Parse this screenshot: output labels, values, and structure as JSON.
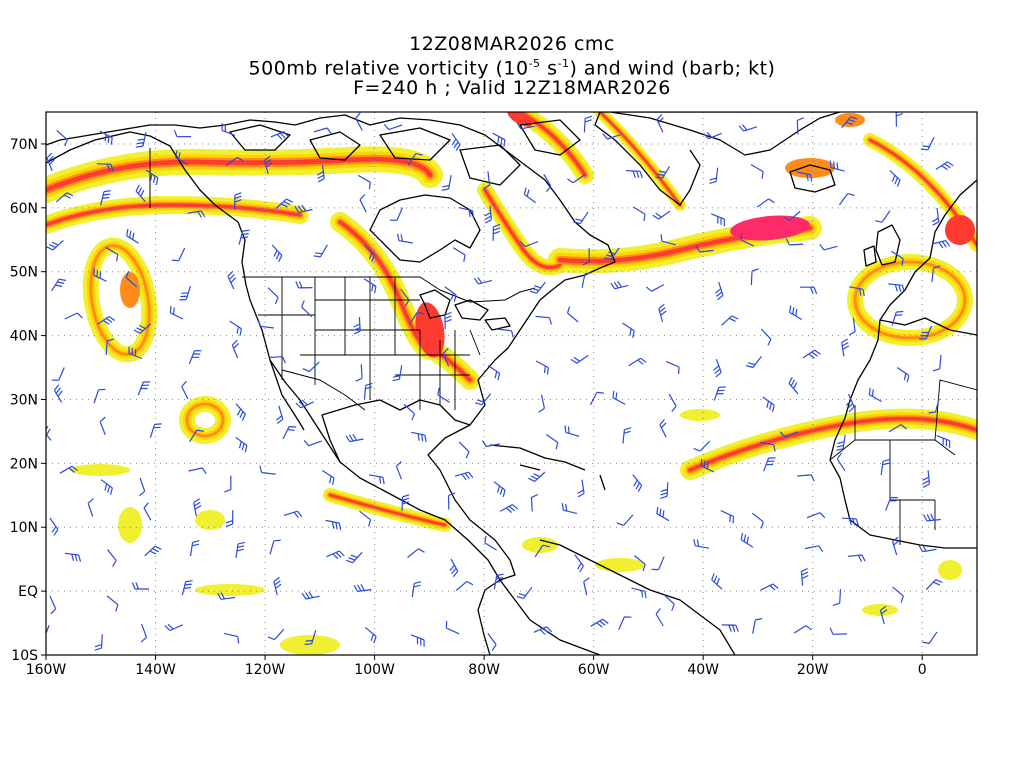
{
  "titles": {
    "line1": "12Z08MAR2026 cmc",
    "line2_prefix": "500mb relative vorticity (10",
    "line2_exp1": "-5",
    "line2_mid": " s",
    "line2_exp2": "-1",
    "line2_suffix": ") and wind (barb; kt)",
    "line3": "F=240 h ; Valid 12Z18MAR2026"
  },
  "map": {
    "lon_range": [
      -160,
      10
    ],
    "lat_range": [
      -10,
      75
    ],
    "lon_ticks": [
      {
        "value": -160,
        "label": "160W"
      },
      {
        "value": -140,
        "label": "140W"
      },
      {
        "value": -120,
        "label": "120W"
      },
      {
        "value": -100,
        "label": "100W"
      },
      {
        "value": -80,
        "label": "80W"
      },
      {
        "value": -60,
        "label": "60W"
      },
      {
        "value": -40,
        "label": "40W"
      },
      {
        "value": -20,
        "label": "20W"
      },
      {
        "value": 0,
        "label": "0"
      }
    ],
    "lat_ticks": [
      {
        "value": 70,
        "label": "70N"
      },
      {
        "value": 60,
        "label": "60N"
      },
      {
        "value": 50,
        "label": "50N"
      },
      {
        "value": 40,
        "label": "40N"
      },
      {
        "value": 30,
        "label": "30N"
      },
      {
        "value": 20,
        "label": "20N"
      },
      {
        "value": 10,
        "label": "10N"
      },
      {
        "value": 0,
        "label": "EQ"
      },
      {
        "value": -10,
        "label": "10S"
      }
    ],
    "colors": {
      "vort_light": "#f0f030",
      "vort_yellow": "#ffd400",
      "vort_orange": "#ff8c1a",
      "vort_red": "#ff3a30",
      "vort_max": "#ff2a6a",
      "barb": "#2a4bdc",
      "coast": "#000000",
      "grid": "#888888"
    }
  }
}
